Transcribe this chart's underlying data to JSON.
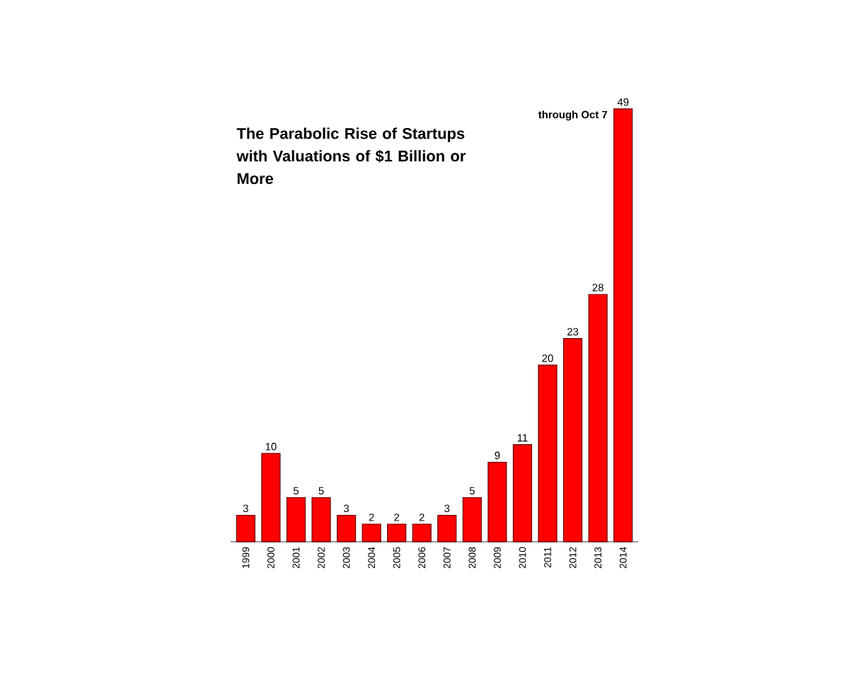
{
  "chart_data": {
    "type": "bar",
    "title": "The Parabolic Rise of Startups with Valuations of $1 Billion or More",
    "categories": [
      "1999",
      "2000",
      "2001",
      "2002",
      "2003",
      "2004",
      "2005",
      "2006",
      "2007",
      "2008",
      "2009",
      "2010",
      "2011",
      "2012",
      "2013",
      "2014"
    ],
    "values": [
      3,
      10,
      5,
      5,
      3,
      2,
      2,
      2,
      3,
      5,
      9,
      11,
      20,
      23,
      28,
      49
    ],
    "color": "#ff0000",
    "data_labels": true,
    "annotations": [
      {
        "text": "through Oct 7",
        "x": "2014",
        "y": 49
      }
    ]
  }
}
